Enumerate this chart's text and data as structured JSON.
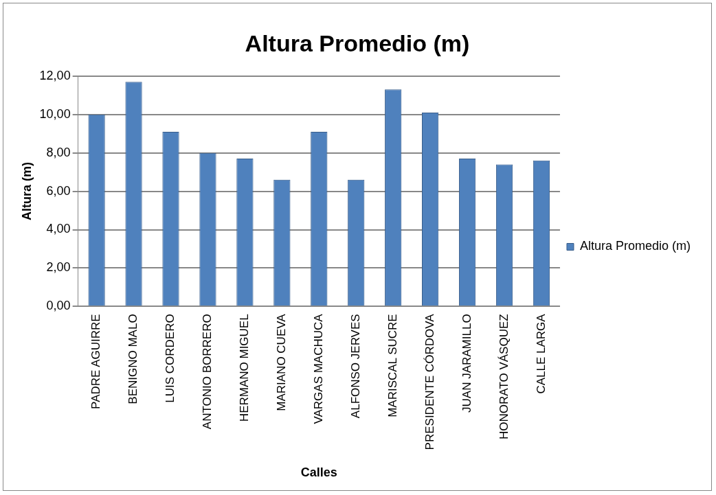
{
  "chart_data": {
    "type": "bar",
    "title": "Altura Promedio (m)",
    "xlabel": "Calles",
    "ylabel": "Altura (m)",
    "categories": [
      "PADRE AGUIRRE",
      "BENIGNO MALO",
      "LUIS CORDERO",
      "ANTONIO BORRERO",
      "HERMANO MIGUEL",
      "MARIANO CUEVA",
      "VARGAS MACHUCA",
      "ALFONSO JERVES",
      "MARISCAL SUCRE",
      "PRESIDENTE CÓRDOVA",
      "JUAN JARAMILLO",
      "HONORATO VÁSQUEZ",
      "CALLE LARGA"
    ],
    "series": [
      {
        "name": "Altura Promedio (m)",
        "color": "#4f81bd",
        "values": [
          10.0,
          11.7,
          9.1,
          8.0,
          7.7,
          6.6,
          9.1,
          6.6,
          11.3,
          10.1,
          7.7,
          7.4,
          7.6
        ]
      }
    ],
    "ylim": [
      0,
      12
    ],
    "yticks": [
      {
        "value": 0,
        "label": "0,00"
      },
      {
        "value": 2,
        "label": "2,00"
      },
      {
        "value": 4,
        "label": "4,00"
      },
      {
        "value": 6,
        "label": "6,00"
      },
      {
        "value": 8,
        "label": "8,00"
      },
      {
        "value": 10,
        "label": "10,00"
      },
      {
        "value": 12,
        "label": "12,00"
      }
    ],
    "grid": "y",
    "legend": "right"
  }
}
